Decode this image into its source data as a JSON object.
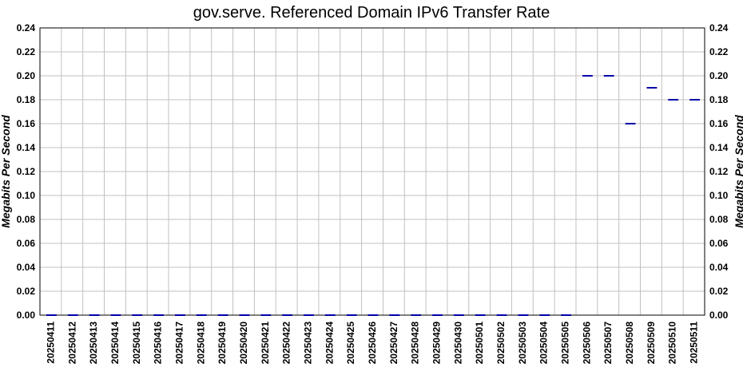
{
  "chart_data": {
    "type": "line",
    "style": "step-segments",
    "title": "gov.serve. Referenced Domain IPv6 Transfer Rate",
    "ylabel": "Megabits Per Second",
    "ylabel_right": "Megabits Per Second",
    "xlabel": "",
    "ylim": [
      0,
      0.24
    ],
    "yticks": [
      "0.00",
      "0.02",
      "0.04",
      "0.06",
      "0.08",
      "0.10",
      "0.12",
      "0.14",
      "0.16",
      "0.18",
      "0.20",
      "0.22",
      "0.24"
    ],
    "grid": true,
    "categories": [
      "20250411",
      "20250412",
      "20250413",
      "20250414",
      "20250415",
      "20250416",
      "20250417",
      "20250418",
      "20250419",
      "20250420",
      "20250421",
      "20250422",
      "20250423",
      "20250424",
      "20250425",
      "20250426",
      "20250427",
      "20250428",
      "20250429",
      "20250430",
      "20250501",
      "20250502",
      "20250503",
      "20250504",
      "20250505",
      "20250506",
      "20250507",
      "20250508",
      "20250509",
      "20250510",
      "20250511"
    ],
    "series": [
      {
        "color": "#0000aa",
        "values": [
          0,
          0,
          0,
          0,
          0,
          0,
          0,
          0,
          0,
          0,
          0,
          0,
          0,
          0,
          0,
          0,
          0,
          0,
          0,
          0,
          0,
          0,
          0,
          0,
          0,
          0.2,
          0.2,
          0.16,
          0.19,
          0.18,
          0.18
        ]
      }
    ]
  }
}
